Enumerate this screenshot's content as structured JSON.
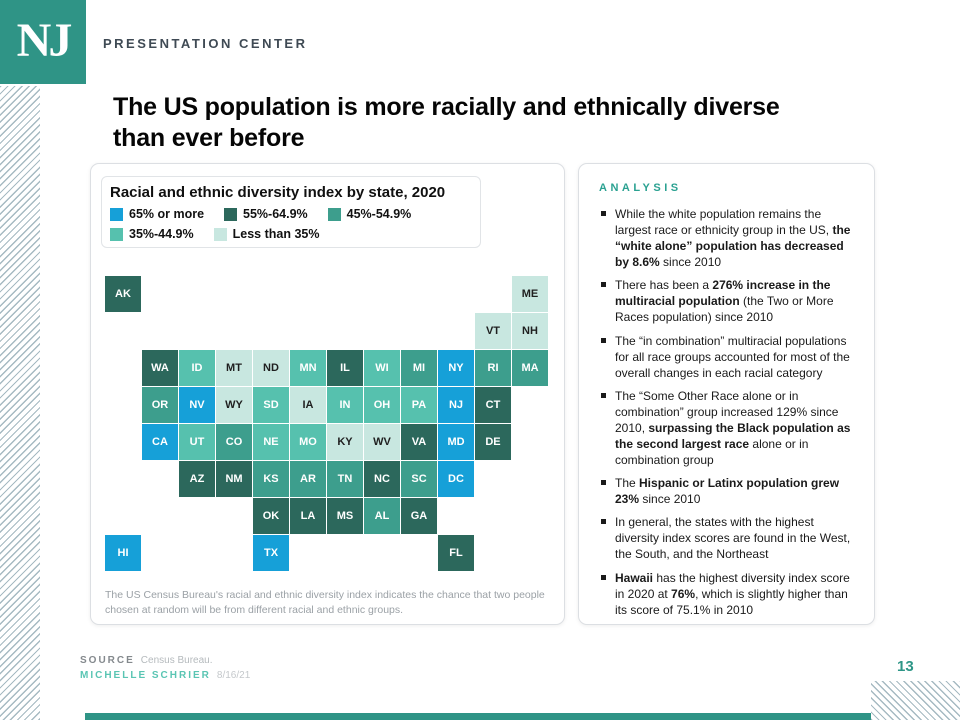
{
  "brand": {
    "logo_text": "NJ",
    "brand_label": "PRESENTATION CENTER",
    "accent_teal": "#2f9486"
  },
  "title": "The US population is more racially and ethnically diverse than ever before",
  "chart_data": {
    "type": "heatmap",
    "title": "Racial and ethnic diversity index by state, 2020",
    "categories": [
      "65% or more",
      "55%-64.9%",
      "45%-54.9%",
      "35%-44.9%",
      "Less than 35%"
    ],
    "colors": [
      "#16a0d8",
      "#2c685c",
      "#3d9e8d",
      "#56c1ae",
      "#c8e7e0"
    ],
    "grid": {
      "cols": 12,
      "rows": 8
    },
    "cells": [
      {
        "abbr": "AK",
        "col": 1,
        "row": 1,
        "cat": 1
      },
      {
        "abbr": "ME",
        "col": 12,
        "row": 1,
        "cat": 4
      },
      {
        "abbr": "VT",
        "col": 11,
        "row": 2,
        "cat": 4
      },
      {
        "abbr": "NH",
        "col": 12,
        "row": 2,
        "cat": 4
      },
      {
        "abbr": "WA",
        "col": 2,
        "row": 3,
        "cat": 1
      },
      {
        "abbr": "ID",
        "col": 3,
        "row": 3,
        "cat": 3
      },
      {
        "abbr": "MT",
        "col": 4,
        "row": 3,
        "cat": 4
      },
      {
        "abbr": "ND",
        "col": 5,
        "row": 3,
        "cat": 4
      },
      {
        "abbr": "MN",
        "col": 6,
        "row": 3,
        "cat": 3
      },
      {
        "abbr": "IL",
        "col": 7,
        "row": 3,
        "cat": 1
      },
      {
        "abbr": "WI",
        "col": 8,
        "row": 3,
        "cat": 3
      },
      {
        "abbr": "MI",
        "col": 9,
        "row": 3,
        "cat": 2
      },
      {
        "abbr": "NY",
        "col": 10,
        "row": 3,
        "cat": 0
      },
      {
        "abbr": "RI",
        "col": 11,
        "row": 3,
        "cat": 2
      },
      {
        "abbr": "MA",
        "col": 12,
        "row": 3,
        "cat": 2
      },
      {
        "abbr": "OR",
        "col": 2,
        "row": 4,
        "cat": 2
      },
      {
        "abbr": "NV",
        "col": 3,
        "row": 4,
        "cat": 0
      },
      {
        "abbr": "WY",
        "col": 4,
        "row": 4,
        "cat": 4
      },
      {
        "abbr": "SD",
        "col": 5,
        "row": 4,
        "cat": 3
      },
      {
        "abbr": "IA",
        "col": 6,
        "row": 4,
        "cat": 4
      },
      {
        "abbr": "IN",
        "col": 7,
        "row": 4,
        "cat": 3
      },
      {
        "abbr": "OH",
        "col": 8,
        "row": 4,
        "cat": 3
      },
      {
        "abbr": "PA",
        "col": 9,
        "row": 4,
        "cat": 3
      },
      {
        "abbr": "NJ",
        "col": 10,
        "row": 4,
        "cat": 0
      },
      {
        "abbr": "CT",
        "col": 11,
        "row": 4,
        "cat": 1
      },
      {
        "abbr": "CA",
        "col": 2,
        "row": 5,
        "cat": 0
      },
      {
        "abbr": "UT",
        "col": 3,
        "row": 5,
        "cat": 3
      },
      {
        "abbr": "CO",
        "col": 4,
        "row": 5,
        "cat": 2
      },
      {
        "abbr": "NE",
        "col": 5,
        "row": 5,
        "cat": 3
      },
      {
        "abbr": "MO",
        "col": 6,
        "row": 5,
        "cat": 3
      },
      {
        "abbr": "KY",
        "col": 7,
        "row": 5,
        "cat": 4
      },
      {
        "abbr": "WV",
        "col": 8,
        "row": 5,
        "cat": 4
      },
      {
        "abbr": "VA",
        "col": 9,
        "row": 5,
        "cat": 1
      },
      {
        "abbr": "MD",
        "col": 10,
        "row": 5,
        "cat": 0
      },
      {
        "abbr": "DE",
        "col": 11,
        "row": 5,
        "cat": 1
      },
      {
        "abbr": "AZ",
        "col": 3,
        "row": 6,
        "cat": 1
      },
      {
        "abbr": "NM",
        "col": 4,
        "row": 6,
        "cat": 1
      },
      {
        "abbr": "KS",
        "col": 5,
        "row": 6,
        "cat": 2
      },
      {
        "abbr": "AR",
        "col": 6,
        "row": 6,
        "cat": 2
      },
      {
        "abbr": "TN",
        "col": 7,
        "row": 6,
        "cat": 2
      },
      {
        "abbr": "NC",
        "col": 8,
        "row": 6,
        "cat": 1
      },
      {
        "abbr": "SC",
        "col": 9,
        "row": 6,
        "cat": 2
      },
      {
        "abbr": "DC",
        "col": 10,
        "row": 6,
        "cat": 0
      },
      {
        "abbr": "OK",
        "col": 5,
        "row": 7,
        "cat": 1
      },
      {
        "abbr": "LA",
        "col": 6,
        "row": 7,
        "cat": 1
      },
      {
        "abbr": "MS",
        "col": 7,
        "row": 7,
        "cat": 1
      },
      {
        "abbr": "AL",
        "col": 8,
        "row": 7,
        "cat": 2
      },
      {
        "abbr": "GA",
        "col": 9,
        "row": 7,
        "cat": 1
      },
      {
        "abbr": "HI",
        "col": 1,
        "row": 8,
        "cat": 0
      },
      {
        "abbr": "TX",
        "col": 5,
        "row": 8,
        "cat": 0
      },
      {
        "abbr": "FL",
        "col": 10,
        "row": 8,
        "cat": 1
      }
    ],
    "footnote": "The US Census Bureau's racial and ethnic diversity index indicates the chance that two people chosen at random will be from different racial and ethnic groups."
  },
  "analysis": {
    "heading": "ANALYSIS",
    "bullets": [
      [
        {
          "t": "While the white population remains the largest race or ethnicity group in the US, ",
          "b": false
        },
        {
          "t": "the “white alone” population has decreased by 8.6%",
          "b": true
        },
        {
          "t": " since 2010",
          "b": false
        }
      ],
      [
        {
          "t": "There has been a ",
          "b": false
        },
        {
          "t": "276% increase in the multiracial population",
          "b": true
        },
        {
          "t": " (the Two or More Races population) since 2010",
          "b": false
        }
      ],
      [
        {
          "t": "The “in combination” multiracial populations for all race groups accounted for most of the overall changes in each racial category",
          "b": false
        }
      ],
      [
        {
          "t": "The “Some Other Race alone or in combination” group increased 129% since 2010, ",
          "b": false
        },
        {
          "t": "surpassing the Black population as the second largest race",
          "b": true
        },
        {
          "t": " alone or in combination group",
          "b": false
        }
      ],
      [
        {
          "t": "The ",
          "b": false
        },
        {
          "t": "Hispanic or Latinx population grew 23%",
          "b": true
        },
        {
          "t": " since 2010",
          "b": false
        }
      ],
      [
        {
          "t": "In general, the states with the highest diversity index scores are found in the West, the South, and the Northeast",
          "b": false
        }
      ],
      [
        {
          "t": "Hawaii",
          "b": true
        },
        {
          "t": " has the highest diversity index score in 2020 at ",
          "b": false
        },
        {
          "t": "76%",
          "b": true
        },
        {
          "t": ", which is slightly higher than its score of 75.1% in 2010",
          "b": false
        }
      ]
    ]
  },
  "footer": {
    "source_label": "SOURCE",
    "source_value": "Census Bureau.",
    "author_name": "MICHELLE SCHRIER",
    "date": "8/16/21",
    "page_number": "13"
  }
}
